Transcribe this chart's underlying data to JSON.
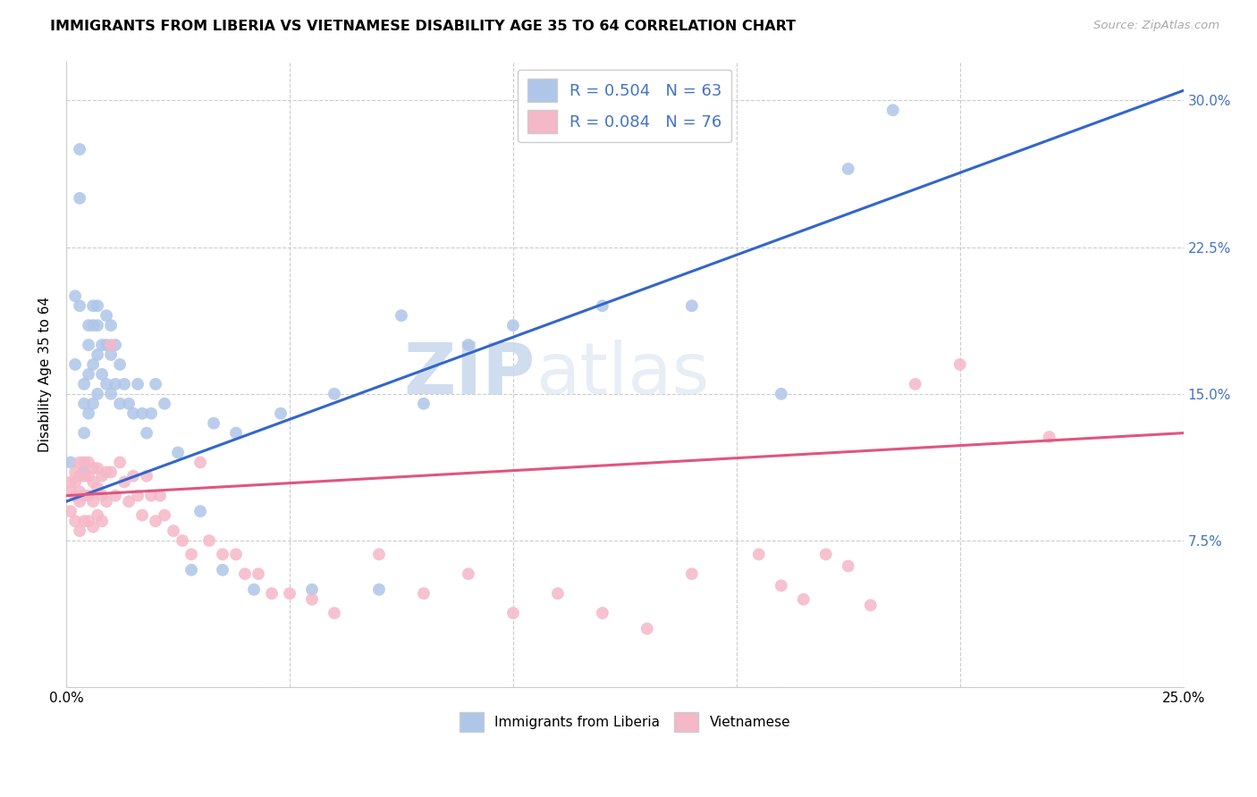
{
  "title": "IMMIGRANTS FROM LIBERIA VS VIETNAMESE DISABILITY AGE 35 TO 64 CORRELATION CHART",
  "source_text": "Source: ZipAtlas.com",
  "ylabel": "Disability Age 35 to 64",
  "xlim": [
    0.0,
    0.25
  ],
  "ylim": [
    0.0,
    0.32
  ],
  "xticks": [
    0.0,
    0.05,
    0.1,
    0.15,
    0.2,
    0.25
  ],
  "yticks": [
    0.0,
    0.075,
    0.15,
    0.225,
    0.3
  ],
  "legend_R1": "R = 0.504",
  "legend_N1": "N = 63",
  "legend_R2": "R = 0.084",
  "legend_N2": "N = 76",
  "liberia_color": "#aec6e8",
  "vietnamese_color": "#f5b8c8",
  "liberia_line_color": "#3366cc",
  "vietnamese_line_color": "#e05580",
  "background_color": "#ffffff",
  "liberia_x": [
    0.001,
    0.002,
    0.002,
    0.003,
    0.003,
    0.003,
    0.004,
    0.004,
    0.004,
    0.004,
    0.005,
    0.005,
    0.005,
    0.005,
    0.006,
    0.006,
    0.006,
    0.006,
    0.007,
    0.007,
    0.007,
    0.007,
    0.008,
    0.008,
    0.009,
    0.009,
    0.009,
    0.01,
    0.01,
    0.01,
    0.011,
    0.011,
    0.012,
    0.012,
    0.013,
    0.014,
    0.015,
    0.016,
    0.017,
    0.018,
    0.019,
    0.02,
    0.022,
    0.025,
    0.028,
    0.03,
    0.033,
    0.035,
    0.038,
    0.042,
    0.048,
    0.055,
    0.06,
    0.07,
    0.075,
    0.08,
    0.09,
    0.1,
    0.12,
    0.14,
    0.16,
    0.175,
    0.185
  ],
  "liberia_y": [
    0.115,
    0.2,
    0.165,
    0.275,
    0.25,
    0.195,
    0.155,
    0.145,
    0.13,
    0.11,
    0.185,
    0.175,
    0.16,
    0.14,
    0.195,
    0.185,
    0.165,
    0.145,
    0.195,
    0.185,
    0.17,
    0.15,
    0.175,
    0.16,
    0.19,
    0.175,
    0.155,
    0.185,
    0.17,
    0.15,
    0.175,
    0.155,
    0.165,
    0.145,
    0.155,
    0.145,
    0.14,
    0.155,
    0.14,
    0.13,
    0.14,
    0.155,
    0.145,
    0.12,
    0.06,
    0.09,
    0.135,
    0.06,
    0.13,
    0.05,
    0.14,
    0.05,
    0.15,
    0.05,
    0.19,
    0.145,
    0.175,
    0.185,
    0.195,
    0.195,
    0.15,
    0.265,
    0.295
  ],
  "vietnamese_x": [
    0.001,
    0.001,
    0.001,
    0.002,
    0.002,
    0.002,
    0.002,
    0.003,
    0.003,
    0.003,
    0.003,
    0.003,
    0.004,
    0.004,
    0.004,
    0.004,
    0.005,
    0.005,
    0.005,
    0.005,
    0.006,
    0.006,
    0.006,
    0.006,
    0.007,
    0.007,
    0.007,
    0.008,
    0.008,
    0.008,
    0.009,
    0.009,
    0.01,
    0.01,
    0.011,
    0.012,
    0.013,
    0.014,
    0.015,
    0.016,
    0.017,
    0.018,
    0.019,
    0.02,
    0.021,
    0.022,
    0.024,
    0.026,
    0.028,
    0.03,
    0.032,
    0.035,
    0.038,
    0.04,
    0.043,
    0.046,
    0.05,
    0.055,
    0.06,
    0.07,
    0.08,
    0.09,
    0.1,
    0.11,
    0.12,
    0.13,
    0.14,
    0.155,
    0.16,
    0.165,
    0.17,
    0.175,
    0.18,
    0.19,
    0.2,
    0.22
  ],
  "vietnamese_y": [
    0.105,
    0.1,
    0.09,
    0.11,
    0.105,
    0.098,
    0.085,
    0.115,
    0.108,
    0.1,
    0.095,
    0.08,
    0.115,
    0.108,
    0.098,
    0.085,
    0.115,
    0.108,
    0.098,
    0.085,
    0.112,
    0.105,
    0.095,
    0.082,
    0.112,
    0.102,
    0.088,
    0.108,
    0.098,
    0.085,
    0.11,
    0.095,
    0.175,
    0.11,
    0.098,
    0.115,
    0.105,
    0.095,
    0.108,
    0.098,
    0.088,
    0.108,
    0.098,
    0.085,
    0.098,
    0.088,
    0.08,
    0.075,
    0.068,
    0.115,
    0.075,
    0.068,
    0.068,
    0.058,
    0.058,
    0.048,
    0.048,
    0.045,
    0.038,
    0.068,
    0.048,
    0.058,
    0.038,
    0.048,
    0.038,
    0.03,
    0.058,
    0.068,
    0.052,
    0.045,
    0.068,
    0.062,
    0.042,
    0.155,
    0.165,
    0.128
  ],
  "blue_line_x": [
    0.0,
    0.25
  ],
  "blue_line_y": [
    0.095,
    0.305
  ],
  "pink_line_x": [
    0.0,
    0.25
  ],
  "pink_line_y": [
    0.098,
    0.13
  ]
}
